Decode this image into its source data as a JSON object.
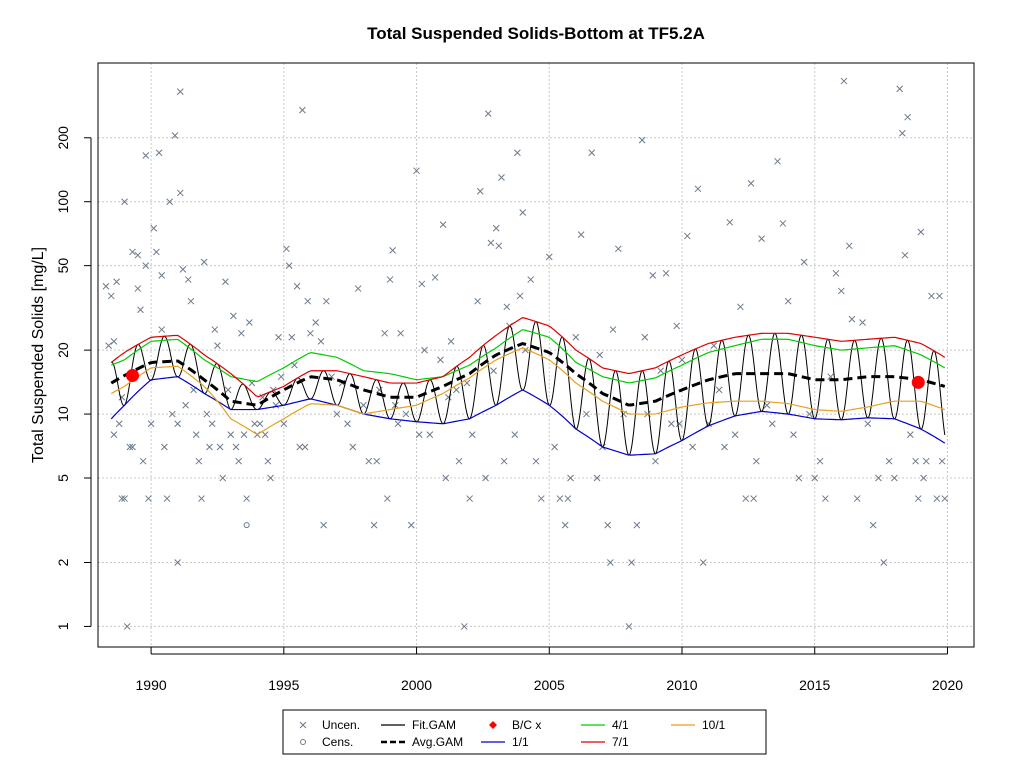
{
  "chart_data": {
    "type": "scatter",
    "title": "Total Suspended Solids-Bottom at TF5.2A",
    "ylabel": "Total Suspended Solids [mg/L]",
    "xlabel": "",
    "xlim": [
      1988,
      2021
    ],
    "ylim": [
      0.8,
      450
    ],
    "y_scale": "log",
    "grid": true,
    "x_ticks": [
      "1990",
      "1995",
      "2000",
      "2005",
      "2010",
      "2015",
      "2020"
    ],
    "y_ticks": [
      "1",
      "2",
      "5",
      "10",
      "20",
      "50",
      "100",
      "200"
    ],
    "legend": {
      "placement": "bottom",
      "entries": [
        {
          "label": "Uncen.",
          "symbol": "x",
          "color": "#6b7a8c"
        },
        {
          "label": "Fit.GAM",
          "symbol": "line",
          "color": "#000000"
        },
        {
          "label": "B/C x",
          "symbol": "diamond",
          "color": "#ff0000"
        },
        {
          "label": "4/1",
          "symbol": "line",
          "color": "#00cc00"
        },
        {
          "label": "10/1",
          "symbol": "line",
          "color": "#e6a020"
        },
        {
          "label": "Cens.",
          "symbol": "circle",
          "color": "#6b7a8c"
        },
        {
          "label": "Avg.GAM",
          "symbol": "dash",
          "color": "#000000"
        },
        {
          "label": "1/1",
          "symbol": "line",
          "color": "#0000cc"
        },
        {
          "label": "7/1",
          "symbol": "line",
          "color": "#dd0000"
        }
      ]
    },
    "colors": {
      "uncensored": "#6b7a8c",
      "censored": "#6b7a8c",
      "fit_gam": "#000000",
      "avg_gam": "#000000",
      "bc": "#ff0000",
      "d1_1": "#0000cc",
      "d4_1": "#00cc00",
      "d7_1": "#dd0000",
      "d10_1": "#e6a020",
      "grid": "#c8c8c8"
    },
    "seasonal_curves": {
      "x": [
        1988.5,
        1989,
        1990,
        1991,
        1992,
        1993,
        1994,
        1995,
        1996,
        1997,
        1998,
        1999,
        2000,
        2001,
        2002,
        2003,
        2004,
        2005,
        2006,
        2007,
        2008,
        2009,
        2010,
        2011,
        2012,
        2013,
        2014,
        2015,
        2016,
        2017,
        2018,
        2019,
        2019.9
      ],
      "avg_gam": [
        14,
        15.2,
        17.5,
        17.8,
        14.5,
        11.5,
        11,
        13,
        15,
        14.5,
        13,
        12,
        12,
        13.5,
        15.5,
        19,
        21.5,
        19.5,
        15.5,
        12.5,
        11,
        11.5,
        13,
        14.5,
        15.5,
        15.5,
        15.5,
        14.5,
        14.5,
        15,
        15,
        14.5,
        13.5
      ],
      "d1_1": [
        9.5,
        11,
        14.5,
        15,
        12.5,
        10.5,
        10.5,
        11,
        11.8,
        11,
        10,
        9.5,
        9.2,
        9,
        9.5,
        11,
        13,
        11,
        8.5,
        7,
        6.4,
        6.5,
        7.5,
        8.8,
        9.8,
        10.3,
        10,
        9.5,
        9.4,
        9.6,
        9.5,
        8.5,
        7.3
      ],
      "d4_1": [
        17,
        18,
        22,
        22.5,
        18,
        15,
        14.2,
        16.5,
        19.5,
        18.5,
        16,
        15.5,
        14.5,
        15,
        17,
        20.5,
        25,
        23,
        17.5,
        15,
        14,
        14.8,
        17,
        19.5,
        21,
        22.5,
        22.5,
        21,
        20,
        20.5,
        21,
        19,
        16.5
      ],
      "d7_1": [
        17.5,
        19.5,
        23,
        23.5,
        19,
        15.5,
        12,
        13.5,
        16,
        16,
        15,
        14,
        14,
        15,
        18.5,
        23.5,
        28.5,
        26,
        20,
        16.5,
        15.5,
        16.5,
        19,
        21.5,
        23,
        24,
        24,
        23,
        22,
        22.5,
        23,
        21.5,
        18.5
      ],
      "d10_1": [
        12.5,
        13.5,
        16.5,
        16.8,
        13.5,
        9.5,
        8,
        9.5,
        11.2,
        11,
        10,
        10.5,
        11,
        12.5,
        14.8,
        18,
        20.5,
        18,
        14,
        11.5,
        10,
        10,
        10.8,
        11.3,
        11.5,
        11.5,
        11.2,
        10.5,
        10.3,
        10.8,
        11.5,
        11.5,
        10.5
      ]
    },
    "fit_gam": {
      "x_start": 1988.5,
      "x_end": 2019.9,
      "cycles_per_year": 1,
      "peak_series": "d7_1",
      "trough_series": "d1_1"
    },
    "bc_points": [
      {
        "x": 1989.3,
        "y": 15.2
      },
      {
        "x": 2018.9,
        "y": 14.1
      }
    ],
    "uncensored_points": [
      [
        1988.3,
        40
      ],
      [
        1988.4,
        21
      ],
      [
        1988.5,
        36
      ],
      [
        1988.6,
        22
      ],
      [
        1988.6,
        8
      ],
      [
        1988.7,
        42
      ],
      [
        1988.8,
        9
      ],
      [
        1988.9,
        4
      ],
      [
        1988.9,
        12
      ],
      [
        1989.0,
        100
      ],
      [
        1989.0,
        4
      ],
      [
        1989.1,
        1
      ],
      [
        1989.2,
        7
      ],
      [
        1989.3,
        58
      ],
      [
        1989.3,
        7
      ],
      [
        1989.5,
        56
      ],
      [
        1989.5,
        39
      ],
      [
        1989.6,
        31
      ],
      [
        1989.7,
        6
      ],
      [
        1989.8,
        50
      ],
      [
        1989.8,
        165
      ],
      [
        1989.9,
        4
      ],
      [
        1990.0,
        9
      ],
      [
        1990.1,
        75
      ],
      [
        1990.2,
        58
      ],
      [
        1990.3,
        170
      ],
      [
        1990.4,
        45
      ],
      [
        1990.4,
        25
      ],
      [
        1990.5,
        7
      ],
      [
        1990.6,
        4
      ],
      [
        1990.7,
        100
      ],
      [
        1990.8,
        10
      ],
      [
        1990.9,
        205
      ],
      [
        1991.0,
        9
      ],
      [
        1991.0,
        2
      ],
      [
        1991.1,
        110
      ],
      [
        1991.1,
        330
      ],
      [
        1991.2,
        48
      ],
      [
        1991.3,
        11
      ],
      [
        1991.4,
        43
      ],
      [
        1991.5,
        34
      ],
      [
        1991.6,
        13
      ],
      [
        1991.7,
        8
      ],
      [
        1991.8,
        6
      ],
      [
        1991.9,
        4
      ],
      [
        1992.0,
        52
      ],
      [
        1992.1,
        10
      ],
      [
        1992.2,
        7
      ],
      [
        1992.3,
        9
      ],
      [
        1992.4,
        25
      ],
      [
        1992.5,
        21
      ],
      [
        1992.6,
        7
      ],
      [
        1992.7,
        5
      ],
      [
        1992.8,
        42
      ],
      [
        1992.9,
        13
      ],
      [
        1993.0,
        8
      ],
      [
        1993.1,
        29
      ],
      [
        1993.2,
        7
      ],
      [
        1993.3,
        6
      ],
      [
        1993.4,
        24
      ],
      [
        1993.5,
        8
      ],
      [
        1993.6,
        4
      ],
      [
        1993.7,
        27
      ],
      [
        1993.8,
        14
      ],
      [
        1993.9,
        9
      ],
      [
        1994.0,
        8
      ],
      [
        1994.1,
        9
      ],
      [
        1994.2,
        12
      ],
      [
        1994.3,
        8
      ],
      [
        1994.4,
        6
      ],
      [
        1994.5,
        5
      ],
      [
        1994.6,
        13
      ],
      [
        1994.7,
        11
      ],
      [
        1994.8,
        23
      ],
      [
        1994.9,
        15
      ],
      [
        1995.0,
        9
      ],
      [
        1995.1,
        60
      ],
      [
        1995.2,
        50
      ],
      [
        1995.3,
        23
      ],
      [
        1995.4,
        17
      ],
      [
        1995.5,
        40
      ],
      [
        1995.6,
        7
      ],
      [
        1995.7,
        270
      ],
      [
        1995.8,
        7
      ],
      [
        1995.9,
        34
      ],
      [
        1996.0,
        24
      ],
      [
        1996.2,
        27
      ],
      [
        1996.4,
        22
      ],
      [
        1996.5,
        3
      ],
      [
        1996.6,
        34
      ],
      [
        1996.8,
        15
      ],
      [
        1997.0,
        10
      ],
      [
        1997.2,
        14
      ],
      [
        1997.4,
        9
      ],
      [
        1997.6,
        7
      ],
      [
        1997.8,
        39
      ],
      [
        1998.0,
        11
      ],
      [
        1998.2,
        6
      ],
      [
        1998.4,
        3
      ],
      [
        1998.5,
        6
      ],
      [
        1998.6,
        13
      ],
      [
        1998.8,
        24
      ],
      [
        1998.9,
        4
      ],
      [
        1999.0,
        43
      ],
      [
        1999.1,
        59
      ],
      [
        1999.2,
        11
      ],
      [
        1999.3,
        9
      ],
      [
        1999.4,
        24
      ],
      [
        1999.6,
        10
      ],
      [
        1999.8,
        3
      ],
      [
        2000.0,
        140
      ],
      [
        2000.1,
        8
      ],
      [
        2000.2,
        41
      ],
      [
        2000.3,
        20
      ],
      [
        2000.5,
        8
      ],
      [
        2000.7,
        44
      ],
      [
        2000.9,
        18
      ],
      [
        2001.0,
        78
      ],
      [
        2001.1,
        5
      ],
      [
        2001.2,
        12
      ],
      [
        2001.3,
        22
      ],
      [
        2001.5,
        13
      ],
      [
        2001.6,
        6
      ],
      [
        2001.8,
        1
      ],
      [
        2001.9,
        14
      ],
      [
        2002.0,
        4
      ],
      [
        2002.1,
        8
      ],
      [
        2002.3,
        34
      ],
      [
        2002.4,
        112
      ],
      [
        2002.6,
        5
      ],
      [
        2002.7,
        260
      ],
      [
        2002.8,
        64
      ],
      [
        2002.9,
        16
      ],
      [
        2003.0,
        75
      ],
      [
        2003.1,
        62
      ],
      [
        2003.2,
        130
      ],
      [
        2003.3,
        6
      ],
      [
        2003.4,
        32
      ],
      [
        2003.5,
        26
      ],
      [
        2003.7,
        8
      ],
      [
        2003.8,
        170
      ],
      [
        2003.9,
        36
      ],
      [
        2004.0,
        89
      ],
      [
        2004.1,
        20
      ],
      [
        2004.3,
        43
      ],
      [
        2004.5,
        6
      ],
      [
        2004.7,
        4
      ],
      [
        2005.0,
        55
      ],
      [
        2005.2,
        7
      ],
      [
        2005.4,
        4
      ],
      [
        2005.6,
        3
      ],
      [
        2005.7,
        4
      ],
      [
        2005.8,
        5
      ],
      [
        2006.0,
        23
      ],
      [
        2006.2,
        70
      ],
      [
        2006.4,
        10
      ],
      [
        2006.6,
        170
      ],
      [
        2006.8,
        5
      ],
      [
        2006.9,
        19
      ],
      [
        2007.0,
        7
      ],
      [
        2007.2,
        3
      ],
      [
        2007.3,
        2
      ],
      [
        2007.4,
        25
      ],
      [
        2007.6,
        60
      ],
      [
        2007.8,
        10
      ],
      [
        2008.0,
        1
      ],
      [
        2008.1,
        2
      ],
      [
        2008.3,
        3
      ],
      [
        2008.5,
        195
      ],
      [
        2008.6,
        23
      ],
      [
        2008.7,
        10
      ],
      [
        2008.9,
        45
      ],
      [
        2009.0,
        6
      ],
      [
        2009.2,
        16
      ],
      [
        2009.4,
        46
      ],
      [
        2009.6,
        9
      ],
      [
        2009.8,
        26
      ],
      [
        2009.9,
        9
      ],
      [
        2010.0,
        18
      ],
      [
        2010.2,
        69
      ],
      [
        2010.4,
        7
      ],
      [
        2010.6,
        115
      ],
      [
        2010.8,
        2
      ],
      [
        2011.0,
        9
      ],
      [
        2011.2,
        21
      ],
      [
        2011.4,
        13
      ],
      [
        2011.6,
        7
      ],
      [
        2011.8,
        80
      ],
      [
        2012.0,
        8
      ],
      [
        2012.2,
        32
      ],
      [
        2012.4,
        4
      ],
      [
        2012.6,
        122
      ],
      [
        2012.7,
        4
      ],
      [
        2012.8,
        6
      ],
      [
        2013.0,
        67
      ],
      [
        2013.2,
        11
      ],
      [
        2013.4,
        9
      ],
      [
        2013.6,
        155
      ],
      [
        2013.8,
        79
      ],
      [
        2014.0,
        34
      ],
      [
        2014.2,
        8
      ],
      [
        2014.4,
        5
      ],
      [
        2014.6,
        52
      ],
      [
        2014.8,
        10
      ],
      [
        2015.0,
        5
      ],
      [
        2015.2,
        6
      ],
      [
        2015.4,
        4
      ],
      [
        2015.6,
        15
      ],
      [
        2015.8,
        46
      ],
      [
        2016.0,
        38
      ],
      [
        2016.1,
        370
      ],
      [
        2016.3,
        62
      ],
      [
        2016.4,
        28
      ],
      [
        2016.6,
        4
      ],
      [
        2016.8,
        27
      ],
      [
        2017.0,
        9
      ],
      [
        2017.2,
        3
      ],
      [
        2017.4,
        5
      ],
      [
        2017.6,
        2
      ],
      [
        2017.8,
        6
      ],
      [
        2018.0,
        5
      ],
      [
        2018.2,
        340
      ],
      [
        2018.3,
        210
      ],
      [
        2018.4,
        56
      ],
      [
        2018.5,
        250
      ],
      [
        2018.6,
        8
      ],
      [
        2018.8,
        6
      ],
      [
        2018.9,
        4
      ],
      [
        2019.0,
        72
      ],
      [
        2019.1,
        5
      ],
      [
        2019.2,
        6
      ],
      [
        2019.4,
        36
      ],
      [
        2019.6,
        4
      ],
      [
        2019.7,
        36
      ],
      [
        2019.8,
        6
      ],
      [
        2019.9,
        4
      ]
    ],
    "censored_points": [
      [
        1993.6,
        3
      ]
    ]
  }
}
